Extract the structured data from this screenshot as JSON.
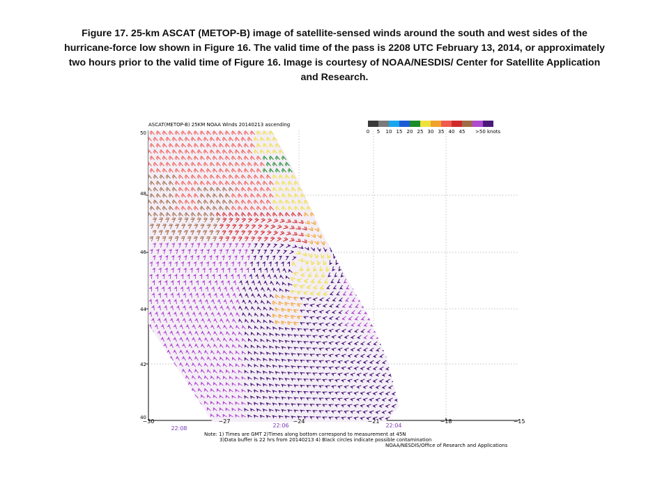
{
  "caption": {
    "lines": [
      "Figure 17.  25-km ASCAT (METOP-B) image of satellite-sensed winds around the south and west  sides of the",
      "hurricane-force low shown in Figure 16.  The valid time of the pass is 2208 UTC February 13, 2014, or approximately",
      "two hours prior to the valid time of Figure 16.  Image is courtesy of NOAA/NESDIS/  Center for Satellite Application",
      "and Research."
    ]
  },
  "map": {
    "title": "ASCAT(METOP-B) 25KM NOAA Winds 20140213 ascending",
    "lat_labels": [
      "50",
      "48",
      "46",
      "44",
      "42",
      "40"
    ],
    "lon_labels": [
      "−30",
      "−27",
      "−24",
      "−21",
      "−18",
      "−15"
    ],
    "time_labels": [
      "22:08",
      "22:06",
      "22:04"
    ],
    "notes": [
      "Note: 1) Times are GMT 2)Times along bottom correspond to measurement at 45N",
      "3)Data buffer is 22 hrs from 20140213 4) Black circles indicate possible contamination",
      "NOAA/NESDIS/Office of Research and Applications"
    ],
    "legend": {
      "labels": [
        "0",
        "5",
        "10",
        "15",
        "20",
        "25",
        "30",
        "35",
        "40",
        "45",
        ">50 knots"
      ],
      "colors": [
        "#3a3a3a",
        "#7a7a7a",
        "#19a6ef",
        "#1b5cd6",
        "#1a8c2a",
        "#f0e03c",
        "#f2a22a",
        "#ef5a4e",
        "#d02a2a",
        "#a06a48",
        "#b04ad0",
        "#4a1a78"
      ]
    }
  }
}
